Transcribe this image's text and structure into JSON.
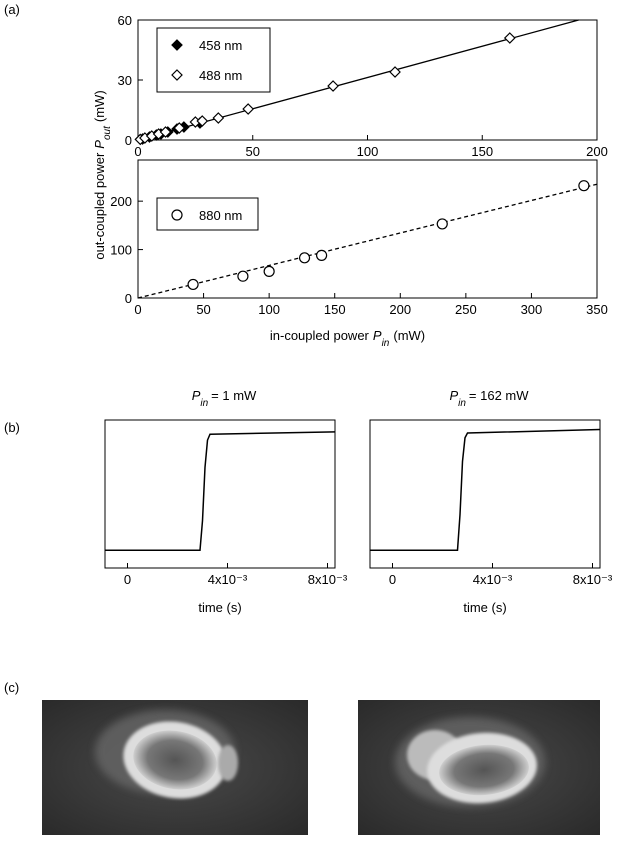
{
  "panel_labels": [
    "(a)",
    "(b)",
    "(c)"
  ],
  "chart_data": [
    {
      "type": "scatter",
      "ylabel": {
        "text": "out-coupled power",
        "symbol": "P",
        "subscript": "out",
        "unit": "(mW)"
      },
      "xlim": [
        0,
        200
      ],
      "ylim": [
        0,
        60
      ],
      "xticks": [
        0,
        50,
        100,
        150,
        200
      ],
      "yticks": [
        0,
        30,
        60
      ],
      "legend": "upper left",
      "series": [
        {
          "name": "458 nm",
          "color": "#000000",
          "marker": "diamond",
          "filled": true,
          "x": [
            2,
            5,
            8,
            10,
            13,
            17,
            20,
            27
          ],
          "values": [
            0.5,
            1.5,
            2.5,
            3,
            4,
            5.5,
            6.5,
            8.5
          ]
        },
        {
          "name": "488 nm",
          "color": "#000000",
          "marker": "diamond",
          "filled": false,
          "x": [
            1,
            3,
            6,
            9,
            12,
            18,
            25,
            28,
            35,
            48,
            85,
            112,
            162
          ],
          "values": [
            0.3,
            1,
            2,
            3,
            4,
            6,
            9,
            9.5,
            11,
            15.5,
            27,
            34,
            51
          ]
        }
      ],
      "fit": {
        "x": [
          0,
          192
        ],
        "y": [
          0,
          60
        ],
        "dashed": false
      }
    },
    {
      "type": "scatter",
      "xlabel": {
        "text": "in-coupled power",
        "symbol": "P",
        "subscript": "in",
        "unit": "(mW)"
      },
      "xlim": [
        0,
        350
      ],
      "ylim": [
        0,
        285
      ],
      "xticks": [
        0,
        50,
        100,
        150,
        200,
        250,
        300,
        350
      ],
      "yticks": [
        0,
        100,
        200
      ],
      "legend": "upper left",
      "series": [
        {
          "name": "880 nm",
          "color": "#000000",
          "marker": "circle",
          "filled": false,
          "x": [
            42,
            80,
            100,
            127,
            140,
            232,
            340
          ],
          "values": [
            28,
            45,
            55,
            83,
            88,
            153,
            232
          ]
        }
      ],
      "fit": {
        "x": [
          0,
          350
        ],
        "y": [
          0,
          235
        ],
        "dashed": true
      }
    },
    {
      "type": "line",
      "title": {
        "symbol": "P",
        "subscript": "in",
        "text": "= 1 mW"
      },
      "xlabel": "time (s)",
      "xlim": [
        -0.0009,
        0.0083
      ],
      "ylim": [
        -0.15,
        1.1
      ],
      "xticks": [
        0,
        {
          "value": 0.004,
          "label": "4x10⁻³"
        },
        {
          "value": 0.008,
          "label": "8x10⁻³"
        }
      ],
      "x": [
        -0.0009,
        0.0029,
        0.003,
        0.0031,
        0.0032,
        0.0033,
        0.0083
      ],
      "y": [
        0,
        0,
        0.25,
        0.7,
        0.93,
        0.98,
        1.0
      ],
      "color": "#000000"
    },
    {
      "type": "line",
      "title": {
        "symbol": "P",
        "subscript": "in",
        "text": "= 162 mW"
      },
      "xlabel": "time (s)",
      "xlim": [
        -0.0009,
        0.0083
      ],
      "ylim": [
        -0.15,
        1.1
      ],
      "xticks": [
        0,
        {
          "value": 0.004,
          "label": "4x10⁻³"
        },
        {
          "value": 0.008,
          "label": "8x10⁻³"
        }
      ],
      "x": [
        -0.0009,
        0.0026,
        0.0027,
        0.0028,
        0.0029,
        0.003,
        0.0083
      ],
      "y": [
        0,
        0,
        0.3,
        0.75,
        0.95,
        0.99,
        1.02
      ],
      "color": "#000000"
    }
  ]
}
